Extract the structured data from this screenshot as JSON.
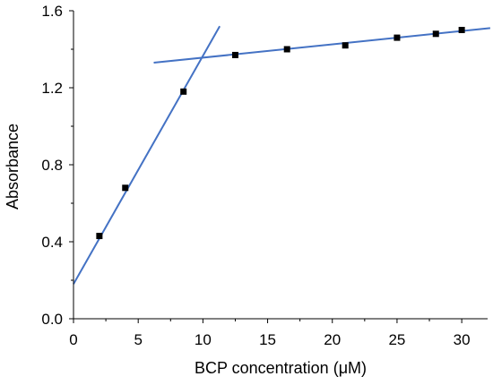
{
  "chart_data": {
    "type": "scatter",
    "xlabel": "BCP concentration (μM)",
    "ylabel": "Absorbance",
    "xlim": [
      0,
      32
    ],
    "ylim": [
      0,
      1.6
    ],
    "x_ticks": [
      0,
      5,
      10,
      15,
      20,
      25,
      30
    ],
    "x_tick_labels": [
      "0",
      "5",
      "10",
      "15",
      "20",
      "25",
      "30"
    ],
    "y_ticks": [
      0,
      0.4,
      0.8,
      1.2,
      1.6
    ],
    "y_tick_labels": [
      "0.0",
      "0.4",
      "0.8",
      "1.2",
      "1.6"
    ],
    "grid": false,
    "series": [
      {
        "type": "scatter",
        "marker": "square",
        "color": "#000000",
        "x": [
          2,
          4,
          8.5,
          12.5,
          16.5,
          21,
          25,
          28,
          30
        ],
        "y": [
          0.43,
          0.68,
          1.18,
          1.37,
          1.4,
          1.42,
          1.46,
          1.48,
          1.5
        ]
      },
      {
        "type": "line",
        "color": "#4472c4",
        "x": [
          0,
          11.3
        ],
        "y": [
          0.18,
          1.52
        ]
      },
      {
        "type": "line",
        "color": "#4472c4",
        "x": [
          6.2,
          32.2
        ],
        "y": [
          1.33,
          1.51
        ]
      }
    ]
  }
}
